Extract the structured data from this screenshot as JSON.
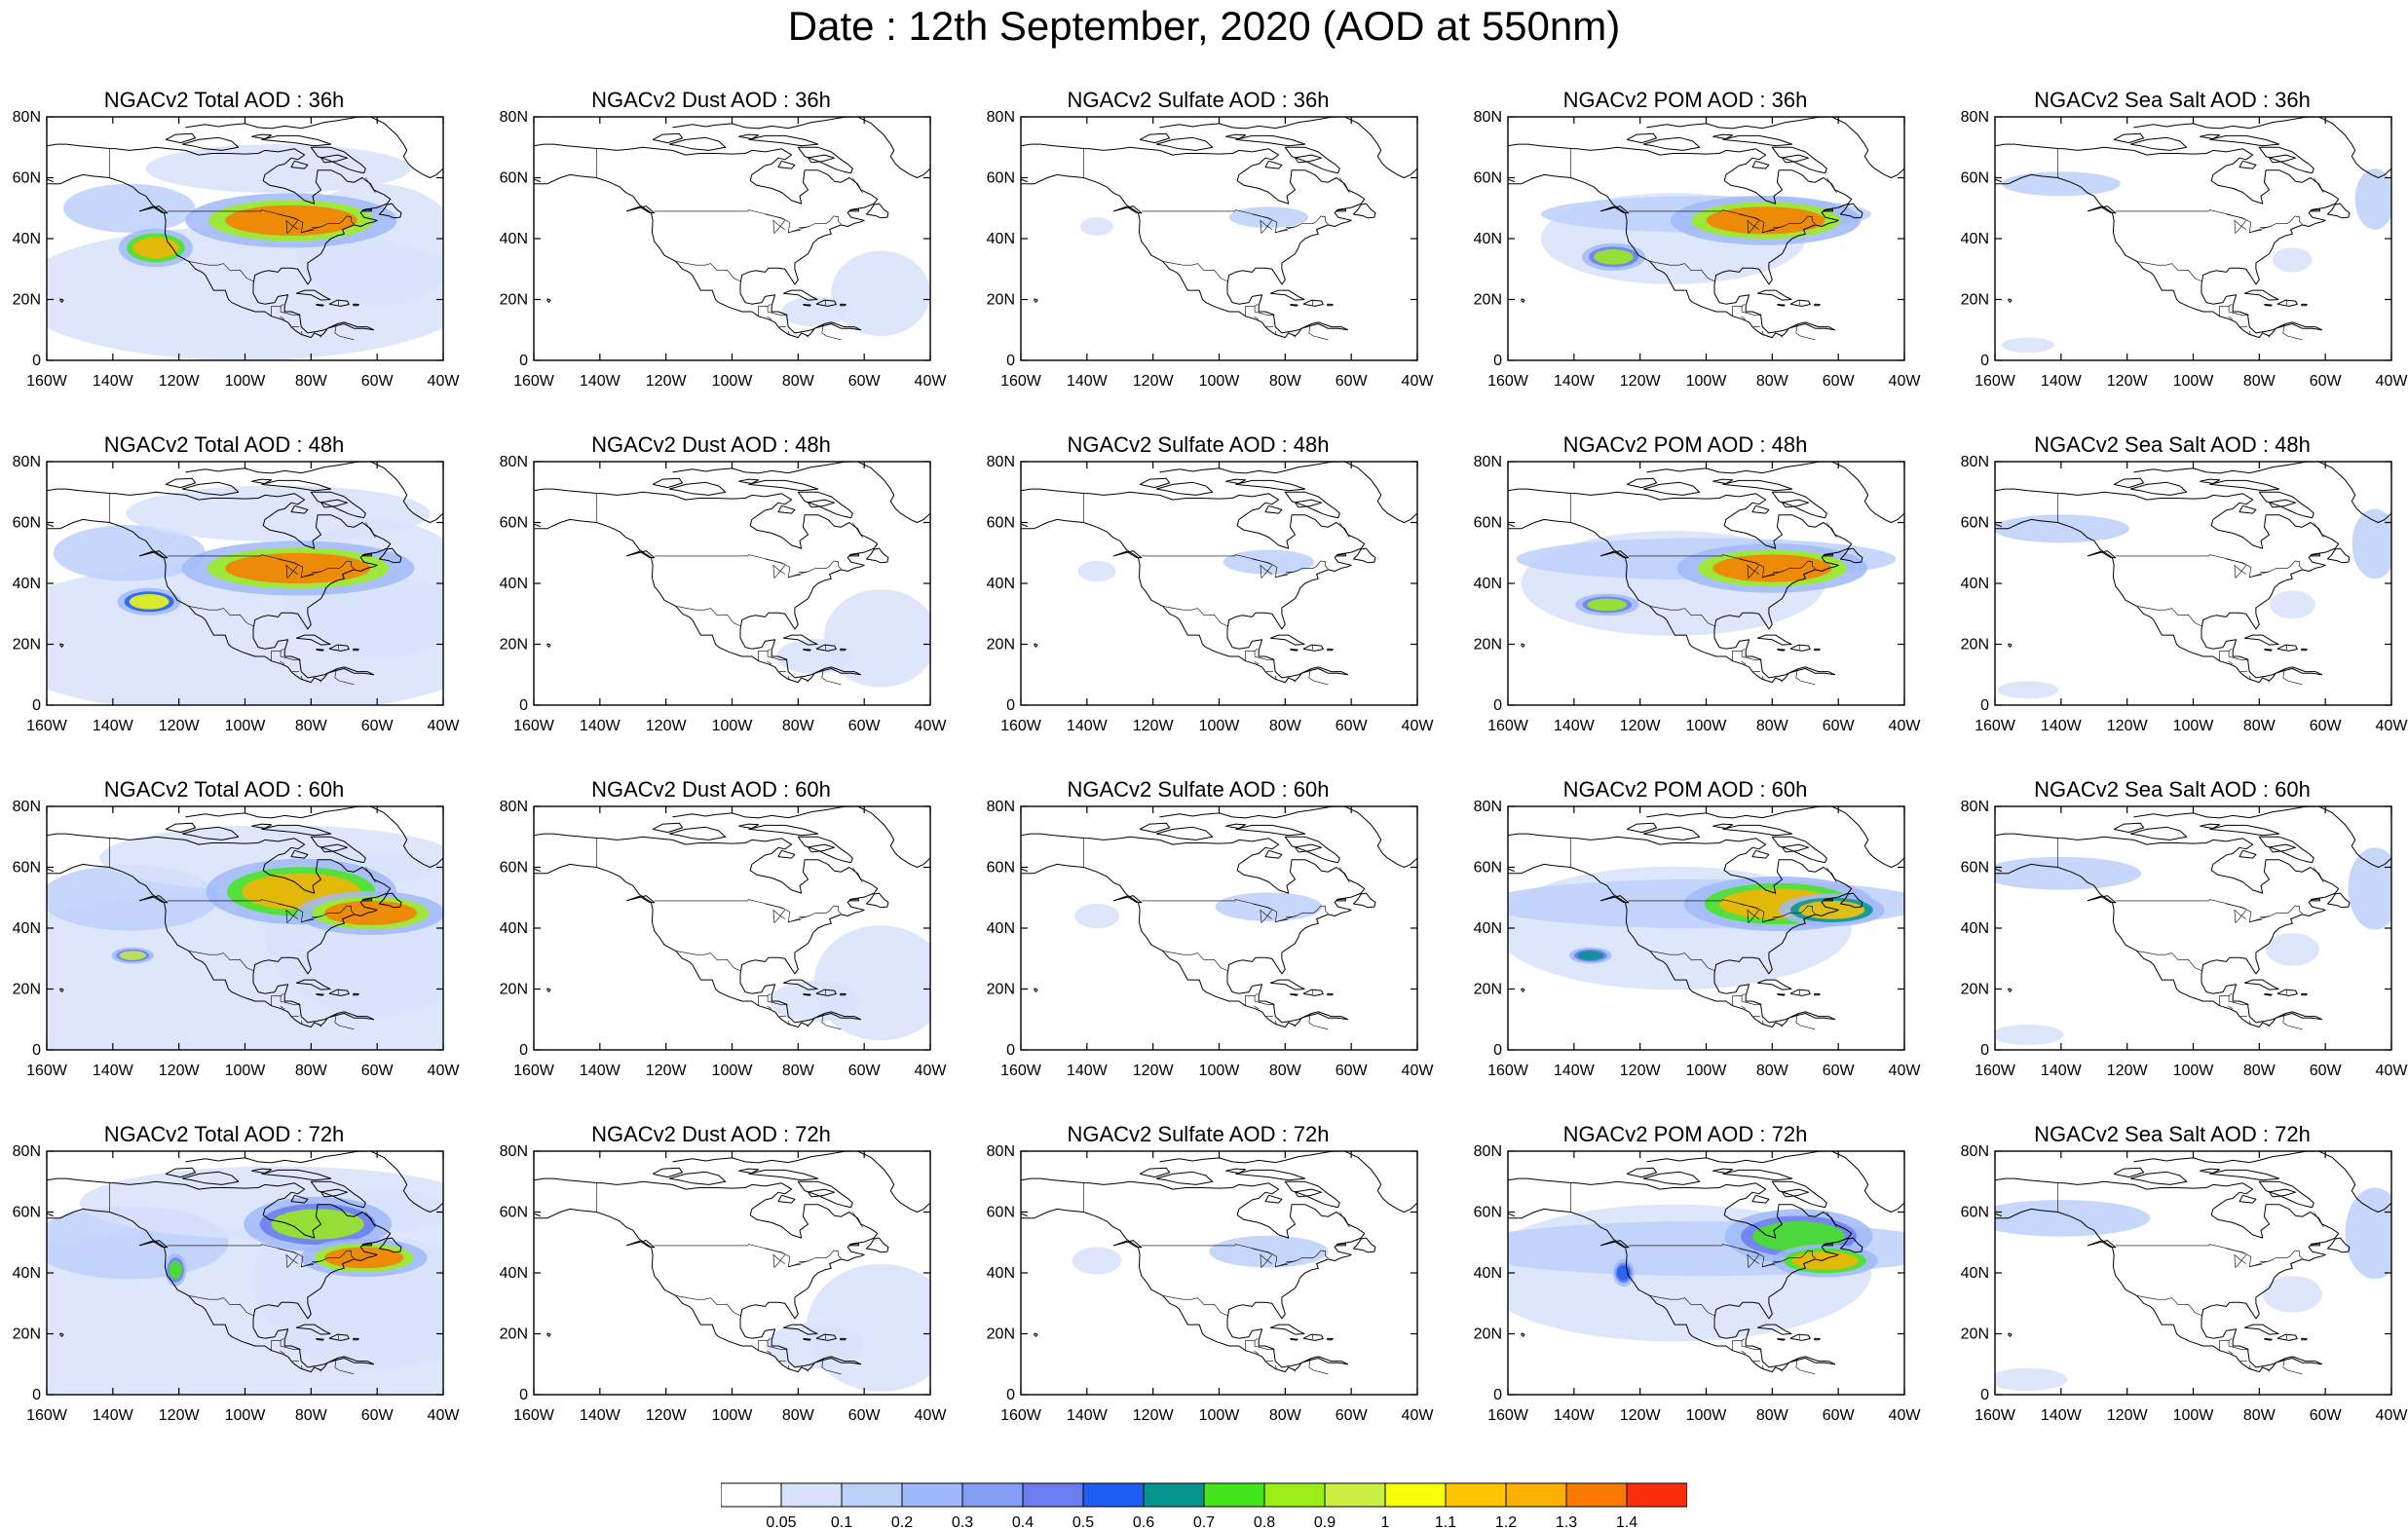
{
  "title": "Date : 12th September, 2020 (AOD at 550nm)",
  "rows": [
    [
      "NGACv2 Total AOD : 36h",
      "NGACv2 Dust AOD : 36h",
      "NGACv2 Sulfate AOD : 36h",
      "NGACv2 POM AOD : 36h",
      "NGACv2 Sea Salt AOD : 36h"
    ],
    [
      "NGACv2 Total AOD : 48h",
      "NGACv2 Dust AOD : 48h",
      "NGACv2 Sulfate AOD : 48h",
      "NGACv2 POM AOD : 48h",
      "NGACv2 Sea Salt AOD : 48h"
    ],
    [
      "NGACv2 Total AOD : 60h",
      "NGACv2 Dust AOD : 60h",
      "NGACv2 Sulfate AOD : 60h",
      "NGACv2 POM AOD : 60h",
      "NGACv2 Sea Salt AOD : 60h"
    ],
    [
      "NGACv2 Total AOD : 72h",
      "NGACv2 Dust AOD : 72h",
      "NGACv2 Sulfate AOD : 72h",
      "NGACv2 POM AOD : 72h",
      "NGACv2 Sea Salt  AOD : 72h"
    ]
  ],
  "map": {
    "lon_range": [
      -160,
      -40
    ],
    "lat_range": [
      0,
      80
    ],
    "lon_ticks": [
      "160W",
      "140W",
      "120W",
      "100W",
      "80W",
      "60W",
      "40W"
    ],
    "lat_ticks": [
      "0",
      "20N",
      "40N",
      "60N",
      "80N"
    ]
  },
  "colorbar": {
    "labels": [
      "0.05",
      "0.1",
      "0.2",
      "0.3",
      "0.4",
      "0.5",
      "0.6",
      "0.7",
      "0.8",
      "0.9",
      "1",
      "1.1",
      "1.2",
      "1.3",
      "1.4"
    ],
    "colors": [
      "#ffffff",
      "#d8e2fb",
      "#bdd0fa",
      "#a0b9f8",
      "#849ef6",
      "#6b7cf0",
      "#1f5df3",
      "#03948d",
      "#45e51c",
      "#9cee17",
      "#c8ef41",
      "#f7ff09",
      "#fcc500",
      "#fbb100",
      "#fa7a00",
      "#fb2e09"
    ]
  }
}
